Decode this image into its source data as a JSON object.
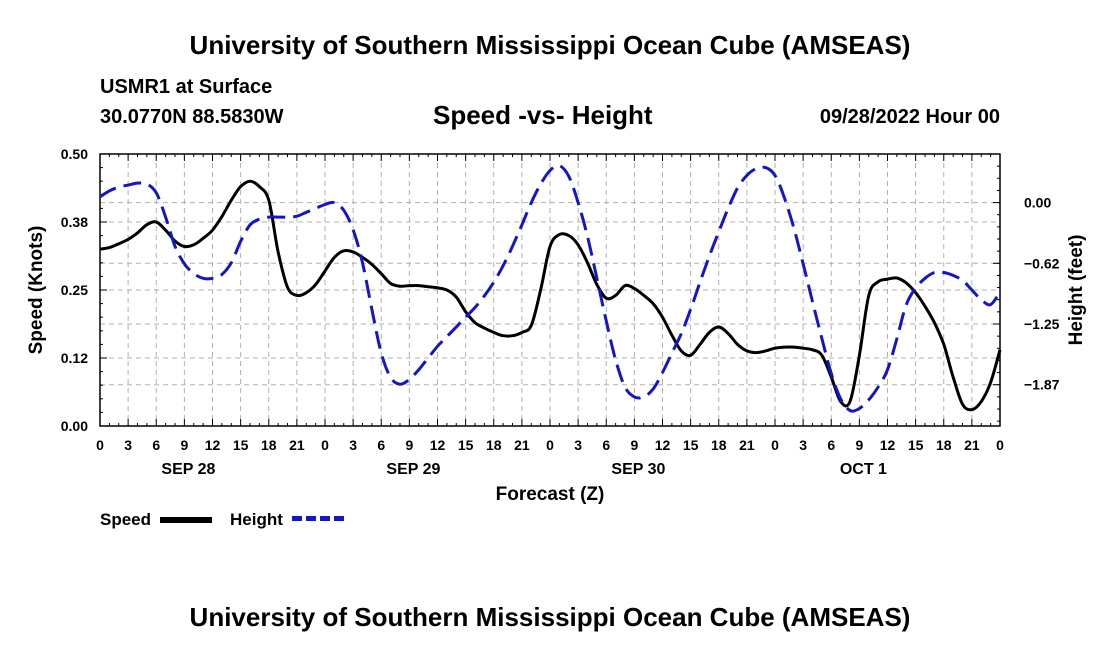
{
  "header": {
    "title": "University of Southern Mississippi Ocean Cube (AMSEAS)",
    "station": "USMR1 at Surface",
    "coords": "30.0770N  88.5830W",
    "subtitle": "Speed -vs- Height",
    "datetime": "09/28/2022 Hour 00"
  },
  "footer": {
    "title": "University of Southern Mississippi Ocean Cube (AMSEAS)"
  },
  "legend": {
    "speed_label": "Speed",
    "height_label": "Height"
  },
  "colors": {
    "speed": "#000000",
    "height": "#1515c8",
    "grid": "#b0b0b0"
  },
  "chart_data": {
    "type": "line",
    "title": "Speed -vs- Height",
    "xlabel": "Forecast (Z)",
    "ylabel": "Speed (Knots)",
    "y2label": "Height (feet)",
    "x_unit": "hours from 09/28/2022 00Z",
    "xlim": [
      0,
      96
    ],
    "ylim": [
      0,
      0.5
    ],
    "y2lim": [
      -2.3,
      0.5
    ],
    "x_tick_values": [
      0,
      3,
      6,
      9,
      12,
      15,
      18,
      21,
      24,
      27,
      30,
      33,
      36,
      39,
      42,
      45,
      48,
      51,
      54,
      57,
      60,
      63,
      66,
      69,
      72,
      75,
      78,
      81,
      84,
      87,
      90,
      93,
      96
    ],
    "x_tick_labels": [
      "0",
      "3",
      "6",
      "9",
      "12",
      "15",
      "18",
      "21",
      "0",
      "3",
      "6",
      "9",
      "12",
      "15",
      "18",
      "21",
      "0",
      "3",
      "6",
      "9",
      "12",
      "15",
      "18",
      "21",
      "0",
      "3",
      "6",
      "9",
      "12",
      "15",
      "18",
      "21",
      "0"
    ],
    "date_labels": [
      {
        "hour": 9,
        "label": "SEP 28"
      },
      {
        "hour": 33,
        "label": "SEP 29"
      },
      {
        "hour": 57,
        "label": "SEP 30"
      },
      {
        "hour": 81,
        "label": "OCT 1"
      }
    ],
    "y_ticks": [
      0.0,
      0.125,
      0.25,
      0.375,
      0.5
    ],
    "y_tick_labels": [
      "0.00",
      "0.12",
      "0.25",
      "0.38",
      "0.50"
    ],
    "y2_ticks": [
      0.0,
      -0.625,
      -1.25,
      -1.875
    ],
    "y2_tick_labels": [
      "0.00",
      "−0.62",
      "−1.25",
      "−1.87"
    ],
    "grid": true,
    "series": [
      {
        "name": "Speed",
        "axis": "left",
        "style": "solid",
        "x": [
          0,
          1,
          2,
          3,
          4,
          5,
          6,
          7,
          8,
          9,
          10,
          11,
          12,
          13,
          14,
          15,
          16,
          17,
          18,
          19,
          20,
          21,
          22,
          23,
          24,
          25,
          26,
          27,
          28,
          29,
          30,
          31,
          32,
          33,
          34,
          35,
          36,
          37,
          38,
          39,
          40,
          41,
          42,
          43,
          44,
          45,
          46,
          47,
          48,
          49,
          50,
          51,
          52,
          53,
          54,
          55,
          56,
          57,
          58,
          59,
          60,
          61,
          62,
          63,
          64,
          65,
          66,
          67,
          68,
          69,
          70,
          71,
          72,
          73,
          74,
          75,
          76,
          77,
          78,
          79,
          80,
          81,
          82,
          83,
          84,
          85,
          86,
          87,
          88,
          89,
          90,
          91,
          92,
          93,
          94,
          95,
          96
        ],
        "y": [
          0.325,
          0.328,
          0.335,
          0.343,
          0.355,
          0.37,
          0.375,
          0.36,
          0.34,
          0.33,
          0.333,
          0.345,
          0.36,
          0.385,
          0.415,
          0.44,
          0.45,
          0.44,
          0.415,
          0.32,
          0.255,
          0.24,
          0.245,
          0.26,
          0.285,
          0.31,
          0.322,
          0.32,
          0.31,
          0.297,
          0.28,
          0.262,
          0.257,
          0.258,
          0.258,
          0.256,
          0.254,
          0.25,
          0.237,
          0.21,
          0.19,
          0.18,
          0.172,
          0.166,
          0.166,
          0.172,
          0.185,
          0.25,
          0.33,
          0.352,
          0.35,
          0.333,
          0.3,
          0.26,
          0.235,
          0.24,
          0.258,
          0.253,
          0.24,
          0.225,
          0.2,
          0.167,
          0.138,
          0.13,
          0.15,
          0.172,
          0.182,
          0.17,
          0.15,
          0.138,
          0.135,
          0.138,
          0.143,
          0.145,
          0.145,
          0.143,
          0.14,
          0.13,
          0.09,
          0.045,
          0.045,
          0.13,
          0.24,
          0.265,
          0.27,
          0.272,
          0.263,
          0.245,
          0.22,
          0.19,
          0.15,
          0.09,
          0.04,
          0.03,
          0.045,
          0.08,
          0.14
        ]
      },
      {
        "name": "Height",
        "axis": "right",
        "style": "dashed",
        "x": [
          0,
          1,
          2,
          3,
          4,
          5,
          6,
          7,
          8,
          9,
          10,
          11,
          12,
          13,
          14,
          15,
          16,
          17,
          18,
          19,
          20,
          21,
          22,
          23,
          24,
          25,
          26,
          27,
          28,
          29,
          30,
          31,
          32,
          33,
          34,
          35,
          36,
          37,
          38,
          39,
          40,
          41,
          42,
          43,
          44,
          45,
          46,
          47,
          48,
          49,
          50,
          51,
          52,
          53,
          54,
          55,
          56,
          57,
          58,
          59,
          60,
          61,
          62,
          63,
          64,
          65,
          66,
          67,
          68,
          69,
          70,
          71,
          72,
          73,
          74,
          75,
          76,
          77,
          78,
          79,
          80,
          81,
          82,
          83,
          84,
          85,
          86,
          87,
          88,
          89,
          90,
          91,
          92,
          93,
          94,
          95,
          96
        ],
        "y": [
          0.06,
          0.12,
          0.16,
          0.18,
          0.2,
          0.19,
          0.1,
          -0.15,
          -0.45,
          -0.63,
          -0.73,
          -0.78,
          -0.78,
          -0.74,
          -0.62,
          -0.4,
          -0.23,
          -0.17,
          -0.15,
          -0.15,
          -0.15,
          -0.14,
          -0.1,
          -0.06,
          -0.02,
          0.0,
          -0.08,
          -0.28,
          -0.62,
          -1.1,
          -1.55,
          -1.8,
          -1.87,
          -1.82,
          -1.72,
          -1.6,
          -1.48,
          -1.38,
          -1.28,
          -1.18,
          -1.08,
          -0.96,
          -0.82,
          -0.65,
          -0.45,
          -0.23,
          -0.0,
          0.19,
          0.33,
          0.38,
          0.27,
          0.0,
          -0.35,
          -0.78,
          -1.22,
          -1.62,
          -1.9,
          -2.0,
          -2.0,
          -1.92,
          -1.75,
          -1.55,
          -1.35,
          -1.1,
          -0.82,
          -0.55,
          -0.3,
          -0.06,
          0.15,
          0.28,
          0.35,
          0.36,
          0.28,
          0.05,
          -0.26,
          -0.63,
          -1.02,
          -1.4,
          -1.76,
          -2.02,
          -2.14,
          -2.12,
          -2.03,
          -1.9,
          -1.72,
          -1.4,
          -1.05,
          -0.88,
          -0.78,
          -0.72,
          -0.72,
          -0.75,
          -0.8,
          -0.9,
          -1.0,
          -1.05,
          -0.92
        ]
      }
    ]
  }
}
